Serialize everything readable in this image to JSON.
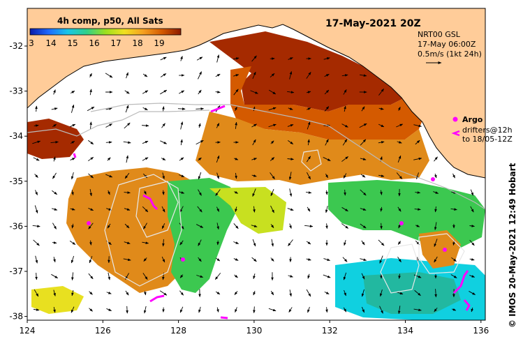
{
  "title": "17-May-2021 20Z",
  "colorbar": {
    "label": "4h comp, p50, All Sats",
    "ticks": [
      "3",
      "14",
      "15",
      "16",
      "17",
      "18",
      "19"
    ],
    "colors": [
      "#0a1aa8",
      "#1f6bff",
      "#18c6e8",
      "#2fd08a",
      "#9be01e",
      "#f0e020",
      "#f5a020",
      "#d45a00",
      "#8c1a00"
    ]
  },
  "info": {
    "source": "NRT00 GSL",
    "date": "17-May 06:00Z",
    "scale": "0.5m/s (1kt 24h)"
  },
  "legend": {
    "argo": "Argo",
    "drifters": "drifters@12h",
    "to": "to 18/05-12Z"
  },
  "credit": "© IMOS 20-May-2021 12:49 Hobart",
  "x_axis": {
    "ticks": [
      "124",
      "126",
      "128",
      "130",
      "132",
      "134",
      "136"
    ]
  },
  "y_axis": {
    "ticks": [
      "-32",
      "-33",
      "-34",
      "-35",
      "-36",
      "-37",
      "-38"
    ]
  },
  "colors": {
    "land": "#ffcc99",
    "hot": "#a52a00",
    "orange": "#e08a1a",
    "yellow": "#e8e020",
    "green": "#3cc850",
    "cyan": "#10d0e0",
    "argo": "#ff00ff",
    "contour": "#bbbbbb"
  }
}
